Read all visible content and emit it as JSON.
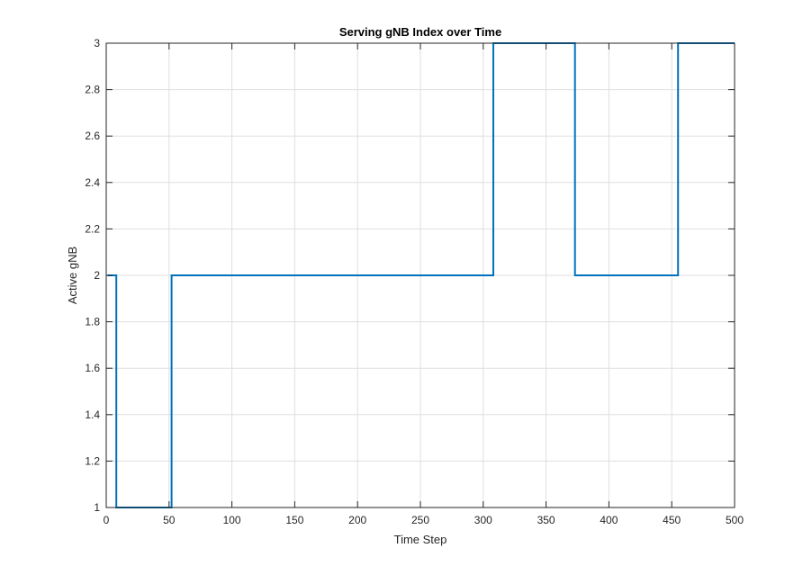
{
  "chart_data": {
    "type": "line",
    "title": "Serving gNB Index over Time",
    "xlabel": "Time Step",
    "ylabel": "Active gNB",
    "xlim": [
      0,
      500
    ],
    "ylim": [
      1,
      3
    ],
    "xticks": [
      0,
      50,
      100,
      150,
      200,
      250,
      300,
      350,
      400,
      450,
      500
    ],
    "yticks": [
      1,
      1.2,
      1.4,
      1.6,
      1.8,
      2,
      2.2,
      2.4,
      2.6,
      2.8,
      3
    ],
    "xtick_labels": [
      "0",
      "50",
      "100",
      "150",
      "200",
      "250",
      "300",
      "350",
      "400",
      "450",
      "500"
    ],
    "ytick_labels": [
      "1",
      "1.2",
      "1.4",
      "1.6",
      "1.8",
      "2",
      "2.2",
      "2.4",
      "2.6",
      "2.8",
      "3"
    ],
    "grid": true,
    "line_style": "step",
    "series": [
      {
        "color": "#0072BD",
        "x": [
          1,
          8,
          8,
          52,
          52,
          308,
          308,
          373,
          373,
          455,
          455,
          500
        ],
        "y": [
          2,
          2,
          1,
          1,
          2,
          2,
          3,
          3,
          2,
          2,
          3,
          3
        ]
      }
    ]
  }
}
